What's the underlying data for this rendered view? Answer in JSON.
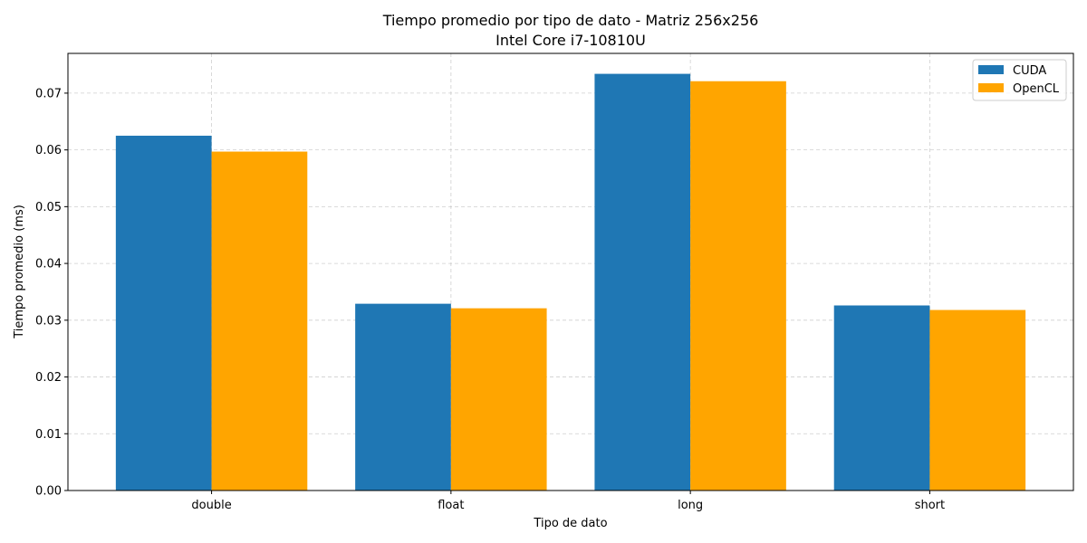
{
  "chart_data": {
    "type": "bar",
    "title": "Tiempo promedio por tipo de dato - Matriz 256x256",
    "subtitle": "Intel Core i7-10810U",
    "xlabel": "Tipo de dato",
    "ylabel": "Tiempo promedio (ms)",
    "categories": [
      "double",
      "float",
      "long",
      "short"
    ],
    "series": [
      {
        "name": "CUDA",
        "color": "#1f77b4",
        "values": [
          0.0625,
          0.0329,
          0.0734,
          0.0326
        ]
      },
      {
        "name": "OpenCL",
        "color": "#ffa500",
        "values": [
          0.0597,
          0.0321,
          0.0721,
          0.0318
        ]
      }
    ],
    "ylim": [
      0,
      0.077
    ],
    "yticks": [
      "0.00",
      "0.01",
      "0.02",
      "0.03",
      "0.04",
      "0.05",
      "0.06",
      "0.07"
    ],
    "grid": true,
    "legend_position": "top-right"
  }
}
